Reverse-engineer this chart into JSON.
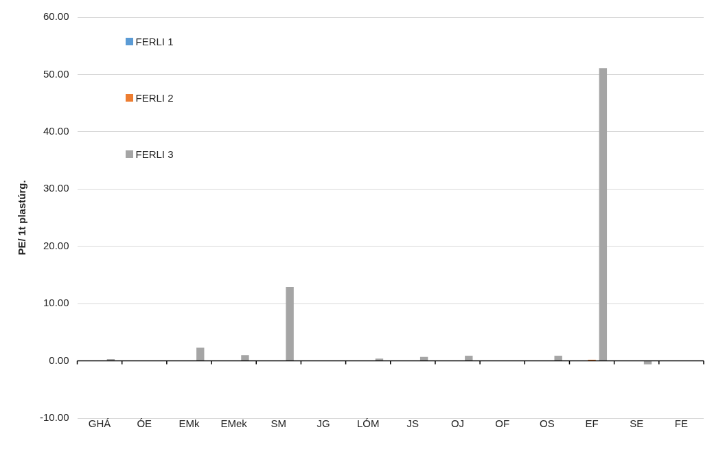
{
  "chart_data": {
    "type": "bar",
    "ylabel": "PE/ 1t plastúrg.",
    "categories": [
      "GHÁ",
      "ÓE",
      "EMk",
      "EMek",
      "SM",
      "JG",
      "LÓM",
      "JS",
      "OJ",
      "OF",
      "OS",
      "EF",
      "SE",
      "FE"
    ],
    "series": [
      {
        "name": "FERLI 1",
        "color": "#5b9bd5",
        "values": [
          0,
          0,
          0,
          0,
          0,
          0,
          0,
          0,
          0,
          0,
          0,
          0,
          0,
          0
        ]
      },
      {
        "name": "FERLI 2",
        "color": "#ed7d31",
        "values": [
          0,
          0,
          0,
          0,
          0,
          0,
          0,
          0,
          0,
          0,
          0,
          0.2,
          0,
          0
        ]
      },
      {
        "name": "FERLI 3",
        "color": "#a5a5a5",
        "values": [
          0.3,
          0,
          2.3,
          1.0,
          12.9,
          0,
          0.4,
          0.7,
          0.9,
          0,
          0.9,
          51.1,
          -0.6,
          0
        ]
      }
    ],
    "ylim": [
      -10,
      60
    ],
    "yticks": [
      {
        "value": -10,
        "label": "-10.00"
      },
      {
        "value": 0,
        "label": "0.00"
      },
      {
        "value": 10,
        "label": "10.00"
      },
      {
        "value": 20,
        "label": "20.00"
      },
      {
        "value": 30,
        "label": "30.00"
      },
      {
        "value": 40,
        "label": "40.00"
      },
      {
        "value": 50,
        "label": "50.00"
      },
      {
        "value": 60,
        "label": "60.00"
      }
    ],
    "grid": "y",
    "legend": "top left"
  }
}
